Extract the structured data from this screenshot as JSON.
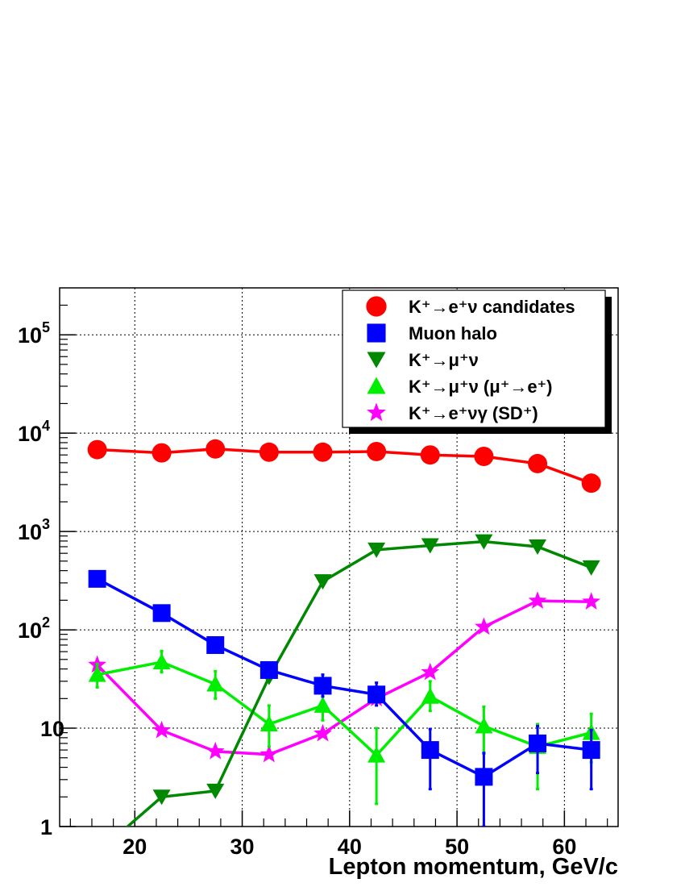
{
  "chart_data": {
    "type": "line",
    "title": "",
    "xlabel": "Lepton momentum, GeV/c",
    "ylabel": "",
    "yscale": "log",
    "xlim": [
      13,
      65
    ],
    "ylim": [
      1,
      300000
    ],
    "grid": true,
    "legend_position": "top-right",
    "x_ticks": [
      20,
      30,
      40,
      50,
      60
    ],
    "x_tick_labels": [
      "20",
      "30",
      "40",
      "50",
      "60"
    ],
    "y_ticks": [
      {
        "value": 1,
        "base": "1",
        "exp": ""
      },
      {
        "value": 10,
        "base": "10",
        "exp": ""
      },
      {
        "value": 100,
        "base": "10",
        "exp": "2"
      },
      {
        "value": 1000,
        "base": "10",
        "exp": "3"
      },
      {
        "value": 10000,
        "base": "10",
        "exp": "4"
      },
      {
        "value": 100000,
        "base": "10",
        "exp": "5"
      }
    ],
    "series": [
      {
        "name": "K⁺→e⁺ν candidates",
        "marker": "circle",
        "color": "#ff0000",
        "x": [
          16.5,
          22.5,
          27.5,
          32.5,
          37.5,
          42.5,
          47.5,
          52.5,
          57.5,
          62.5
        ],
        "values": [
          6800,
          6300,
          6900,
          6400,
          6400,
          6500,
          6000,
          5800,
          4900,
          3100
        ],
        "errors": [
          null,
          null,
          null,
          null,
          null,
          null,
          null,
          null,
          null,
          null
        ]
      },
      {
        "name": "Muon halo",
        "marker": "square",
        "color": "#0000ff",
        "x": [
          16.5,
          22.5,
          27.5,
          32.5,
          37.5,
          42.5,
          47.5,
          52.5,
          57.5,
          62.5
        ],
        "values": [
          330,
          148,
          70,
          39,
          27,
          22,
          6,
          3.2,
          7,
          6
        ],
        "errors": [
          null,
          null,
          null,
          [
            33,
            46
          ],
          [
            21,
            35
          ],
          [
            17,
            29
          ],
          [
            2.4,
            9.8
          ],
          [
            1,
            5.6
          ],
          [
            3.5,
            10.5
          ],
          [
            2.4,
            9.6
          ]
        ]
      },
      {
        "name": "K⁺→μ⁺ν",
        "marker": "triangle-down",
        "color": "#008800",
        "x": [
          17,
          22.5,
          27.5,
          32.5,
          37.5,
          42.5,
          47.5,
          52.5,
          57.5,
          62.5
        ],
        "values": [
          0.6,
          2.0,
          2.3,
          33,
          310,
          650,
          720,
          790,
          700,
          430
        ],
        "errors": [
          null,
          null,
          null,
          null,
          null,
          null,
          null,
          null,
          null,
          null
        ]
      },
      {
        "name": "K⁺→μ⁺ν (μ⁺→e⁺)",
        "marker": "triangle-up",
        "color": "#00ee00",
        "x": [
          16.5,
          22.5,
          27.5,
          32.5,
          37.5,
          42.5,
          47.5,
          52.5,
          57.5,
          62.5
        ],
        "values": [
          35,
          47,
          28,
          11,
          17,
          5.3,
          21,
          10.5,
          6.5,
          9
        ],
        "errors": [
          [
            26,
            45
          ],
          [
            37,
            61
          ],
          [
            20,
            38
          ],
          [
            6.5,
            17
          ],
          [
            12,
            24
          ],
          [
            1.7,
            10
          ],
          [
            15,
            30
          ],
          [
            5.5,
            16.5
          ],
          [
            2.4,
            11
          ],
          [
            4.5,
            14
          ]
        ]
      },
      {
        "name": "K⁺→e⁺νγ (SD⁺)",
        "marker": "star",
        "color": "#ff00ff",
        "x": [
          16.5,
          22.5,
          27.5,
          32.5,
          37.5,
          42.5,
          47.5,
          52.5,
          57.5,
          62.5
        ],
        "values": [
          44,
          9.5,
          5.8,
          5.4,
          8.8,
          20,
          37,
          107,
          197,
          193
        ],
        "errors": [
          null,
          null,
          null,
          null,
          null,
          null,
          null,
          null,
          null,
          null
        ]
      }
    ]
  }
}
